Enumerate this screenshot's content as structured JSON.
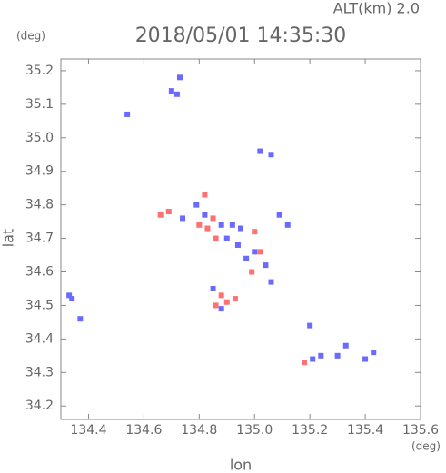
{
  "chart_data": {
    "type": "scatter",
    "title": "2018/05/01 14:35:30",
    "subtitle": "ALT(km) 2.0",
    "y_unit": "(deg)",
    "x_unit": "(deg)",
    "x_label": "lon",
    "y_label": "lat",
    "xlim": [
      134.3,
      135.6
    ],
    "xticks": [
      134.4,
      134.6,
      134.8,
      {
        "value": 135,
        "label": "135.0"
      },
      135.2,
      135.4,
      135.6
    ],
    "ylim": [
      34.16,
      35.235
    ],
    "yticks": [
      34.2,
      34.3,
      34.4,
      34.5,
      34.6,
      34.7,
      34.8,
      34.9,
      {
        "value": 35,
        "label": "35.0"
      },
      35.1,
      35.2
    ],
    "series": [
      {
        "color": "#6a6aff",
        "x": [
          134.73,
          134.7,
          134.72,
          134.54,
          135.02,
          135.06,
          134.79,
          134.82,
          134.74,
          134.88,
          134.92,
          134.95,
          134.9,
          134.94,
          135.0,
          134.97,
          135.04,
          135.06,
          134.85,
          134.88,
          135.09,
          135.12,
          134.33,
          134.34,
          134.37,
          135.2,
          135.24,
          135.21,
          135.3,
          135.4,
          135.43,
          135.33
        ],
        "values": [
          35.18,
          35.14,
          35.13,
          35.07,
          34.96,
          34.95,
          34.8,
          34.77,
          34.76,
          34.74,
          34.74,
          34.73,
          34.7,
          34.68,
          34.66,
          34.64,
          34.62,
          34.57,
          34.55,
          34.49,
          34.77,
          34.74,
          34.53,
          34.52,
          34.46,
          34.44,
          34.35,
          34.34,
          34.35,
          34.34,
          34.36,
          34.38
        ]
      },
      {
        "color": "#ff7070",
        "x": [
          134.82,
          134.66,
          134.69,
          134.8,
          134.83,
          134.86,
          135.0,
          135.02,
          134.99,
          134.88,
          134.9,
          134.86,
          134.93,
          135.18,
          134.85
        ],
        "values": [
          34.83,
          34.77,
          34.78,
          34.74,
          34.73,
          34.7,
          34.72,
          34.66,
          34.6,
          34.53,
          34.51,
          34.5,
          34.52,
          34.33,
          34.76
        ]
      }
    ]
  }
}
